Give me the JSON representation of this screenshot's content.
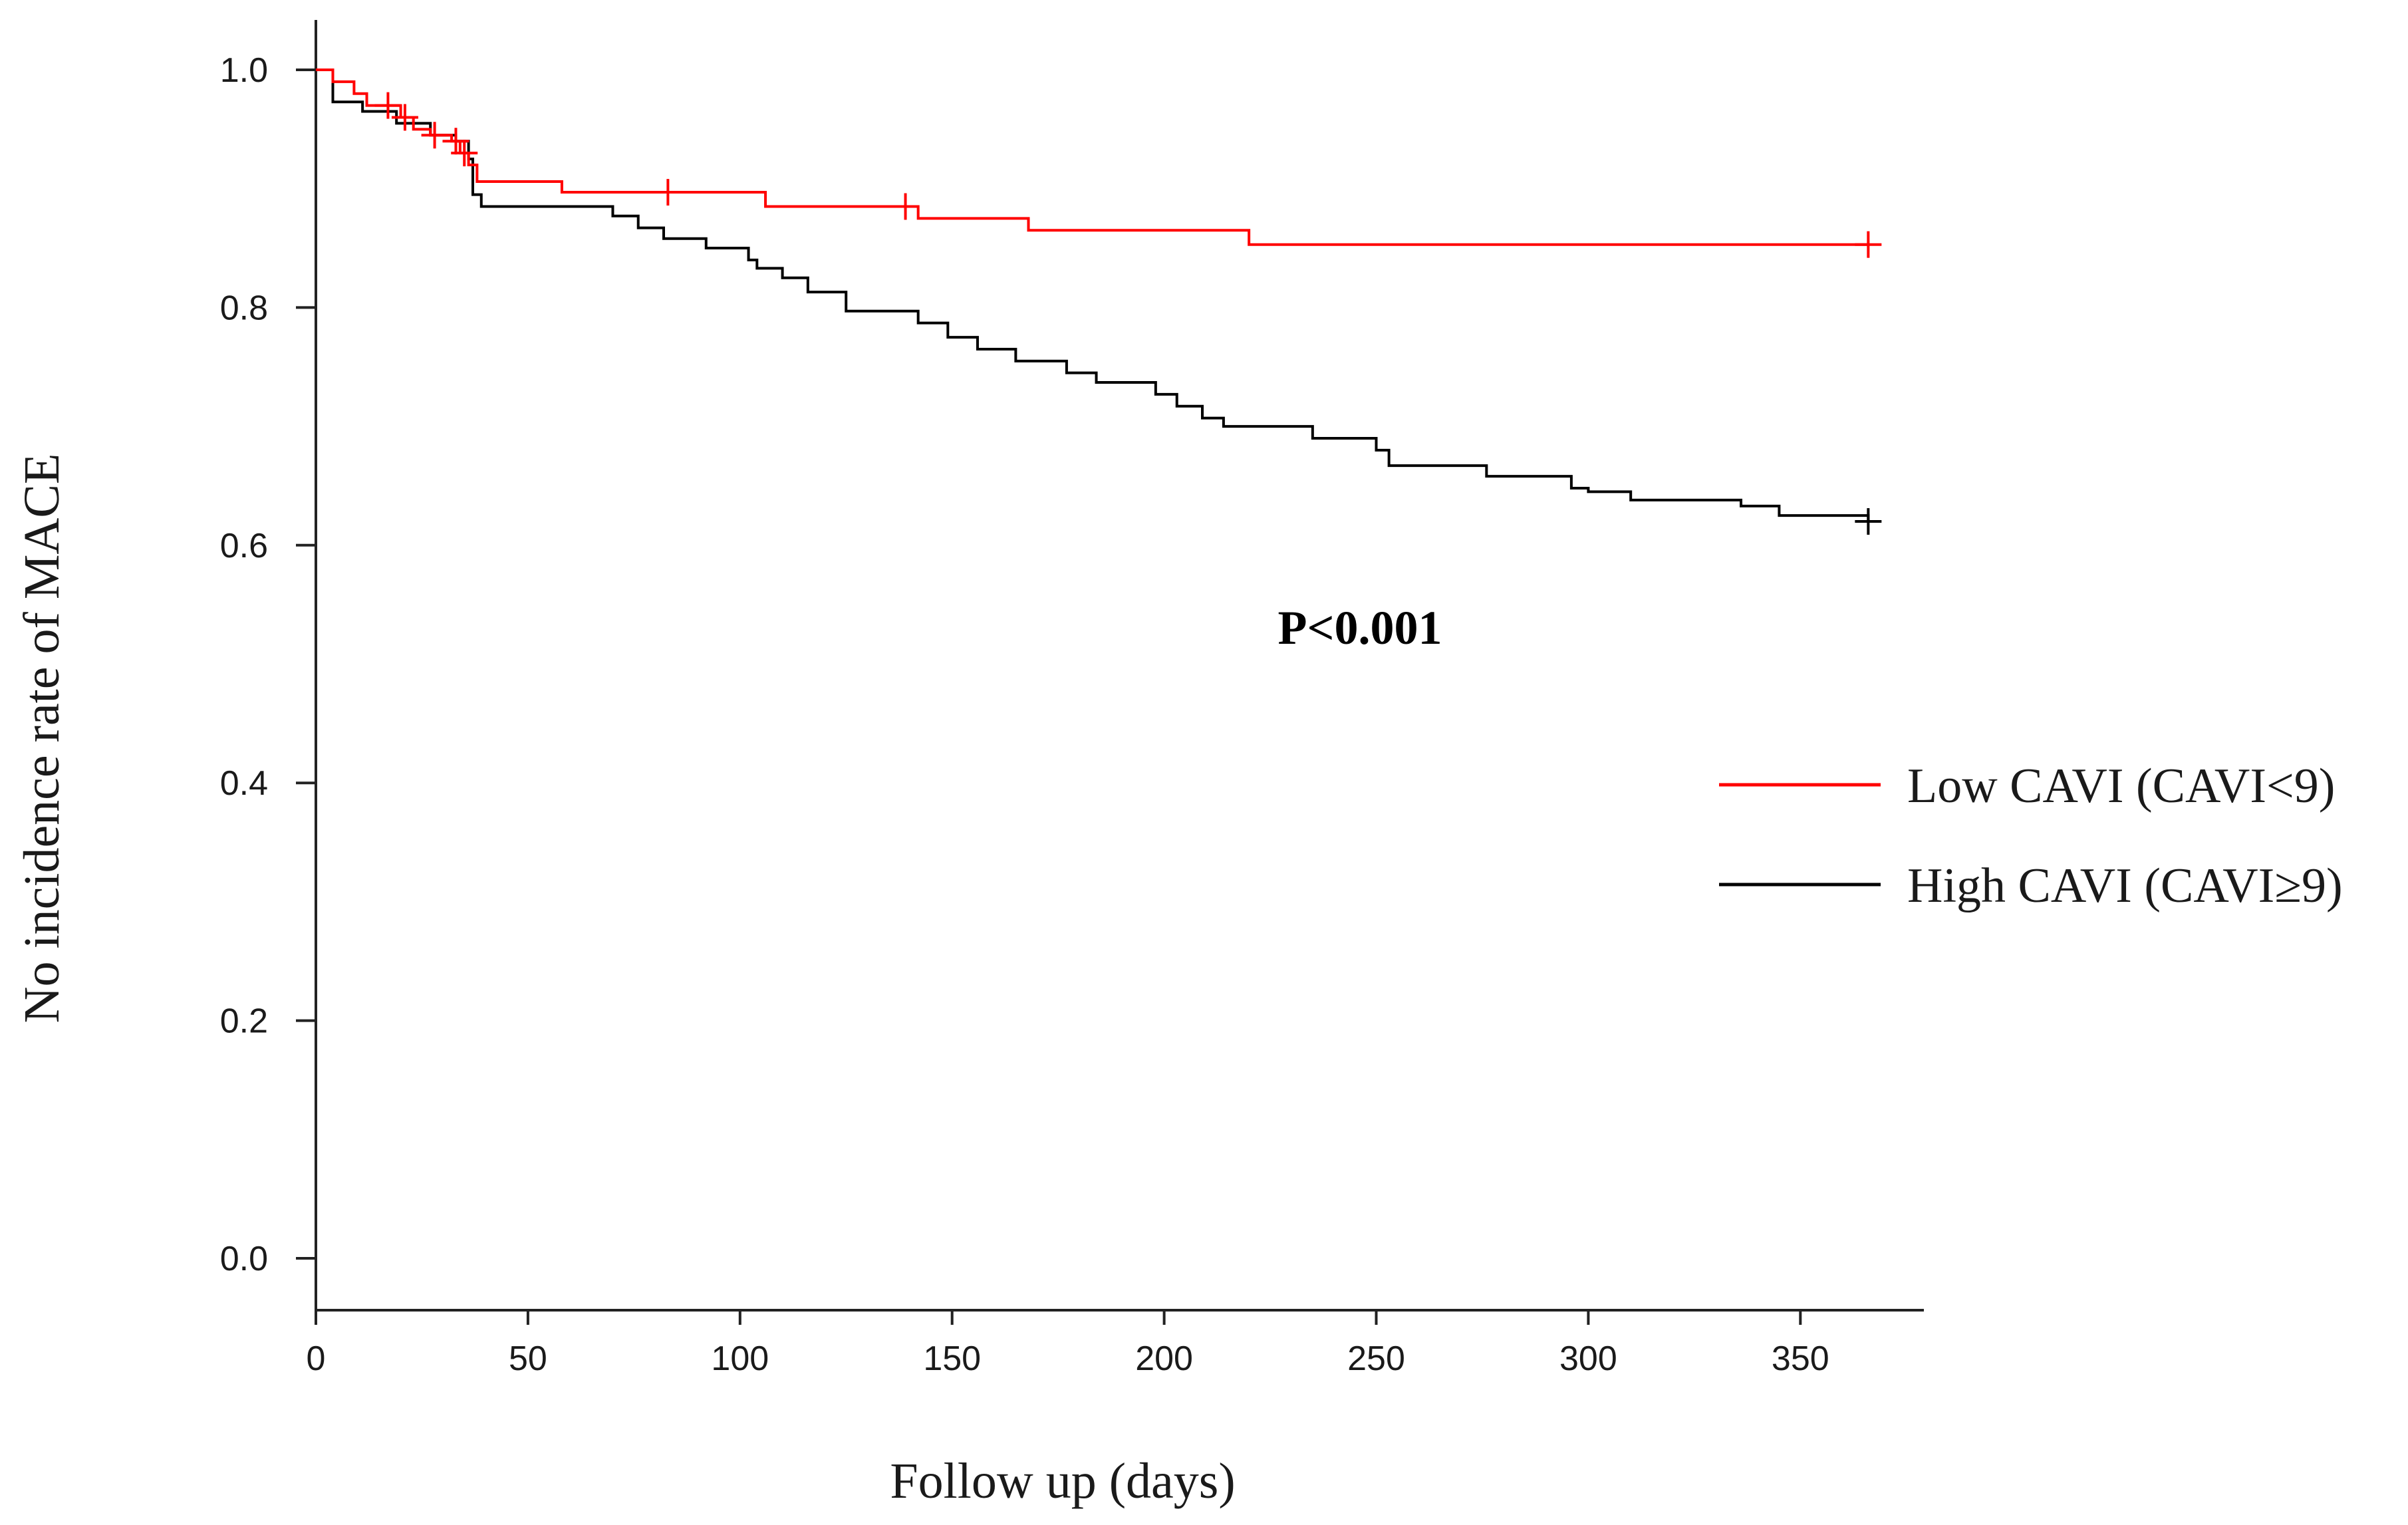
{
  "chart_data": {
    "type": "line",
    "subtype": "kaplan-meier-step",
    "title": "",
    "xlabel": "Follow up (days)",
    "ylabel": "No incidence rate of MACE",
    "xlim": [
      0,
      378
    ],
    "ylim": [
      -0.04,
      1.04
    ],
    "x_ticks": [
      0,
      50,
      100,
      150,
      200,
      250,
      300,
      350
    ],
    "x_tick_labels": [
      "0",
      "50",
      "100",
      "150",
      "200",
      "250",
      "300",
      "350"
    ],
    "y_ticks": [
      0.0,
      0.2,
      0.4,
      0.6,
      0.8,
      1.0
    ],
    "y_tick_labels": [
      "0.0",
      "0.2",
      "0.4",
      "0.6",
      "0.8",
      "1.0"
    ],
    "grid": false,
    "legend_position": "right",
    "annotation": "P<0.001",
    "series": [
      {
        "name": "Low CAVI (CAVI<9)",
        "color": "#ff0000",
        "x": [
          0,
          4,
          9,
          12,
          20,
          23,
          27,
          32,
          34,
          36,
          38,
          58,
          106,
          142,
          168,
          220,
          366
        ],
        "y": [
          1.0,
          0.99,
          0.98,
          0.97,
          0.96,
          0.95,
          0.945,
          0.94,
          0.93,
          0.92,
          0.906,
          0.897,
          0.885,
          0.875,
          0.865,
          0.853,
          0.853
        ],
        "censored_x": [
          17,
          21,
          28,
          33,
          35,
          83,
          139,
          366
        ]
      },
      {
        "name": "High CAVI (CAVI≥9)",
        "color": "#000000",
        "x": [
          0,
          4,
          11,
          19,
          27,
          33,
          36,
          37,
          39,
          70,
          76,
          82,
          92,
          102,
          104,
          110,
          116,
          125,
          134,
          142,
          149,
          156,
          165,
          177,
          184,
          198,
          203,
          209,
          214,
          235,
          250,
          253,
          276,
          286,
          296,
          300,
          310,
          330,
          336,
          345,
          366
        ],
        "y": [
          1.0,
          0.973,
          0.965,
          0.955,
          0.945,
          0.94,
          0.925,
          0.895,
          0.885,
          0.877,
          0.867,
          0.858,
          0.85,
          0.84,
          0.833,
          0.825,
          0.813,
          0.797,
          0.797,
          0.787,
          0.775,
          0.765,
          0.755,
          0.745,
          0.737,
          0.727,
          0.717,
          0.707,
          0.7,
          0.69,
          0.68,
          0.667,
          0.658,
          0.658,
          0.648,
          0.645,
          0.638,
          0.638,
          0.633,
          0.625,
          0.62
        ],
        "censored_x": [
          366
        ]
      }
    ]
  }
}
